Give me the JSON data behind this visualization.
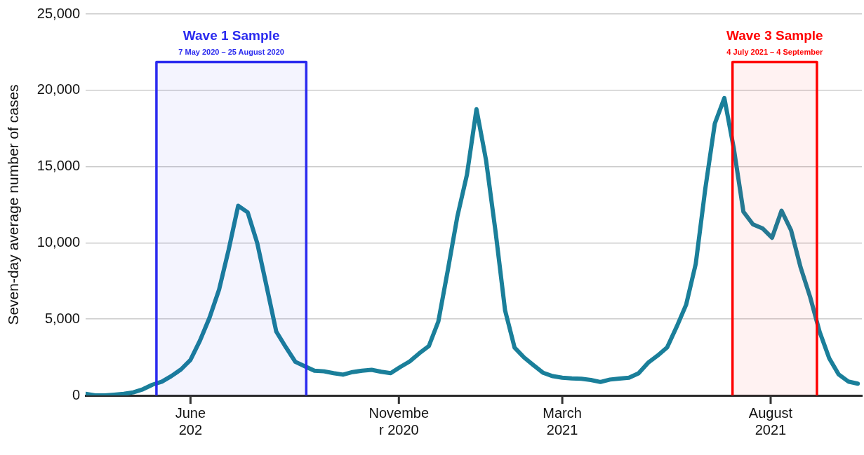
{
  "chart_data": {
    "type": "line",
    "ylabel": "Seven-day average number of cases",
    "x": [
      "2020-03-16",
      "2020-03-23",
      "2020-03-30",
      "2020-04-06",
      "2020-04-13",
      "2020-04-20",
      "2020-04-27",
      "2020-05-04",
      "2020-05-11",
      "2020-05-18",
      "2020-05-25",
      "2020-06-01",
      "2020-06-08",
      "2020-06-15",
      "2020-06-22",
      "2020-06-29",
      "2020-07-06",
      "2020-07-13",
      "2020-07-20",
      "2020-07-27",
      "2020-08-03",
      "2020-08-10",
      "2020-08-17",
      "2020-08-24",
      "2020-08-31",
      "2020-09-07",
      "2020-09-14",
      "2020-09-21",
      "2020-09-28",
      "2020-10-05",
      "2020-10-12",
      "2020-10-19",
      "2020-10-26",
      "2020-11-02",
      "2020-11-09",
      "2020-11-16",
      "2020-11-23",
      "2020-11-30",
      "2020-12-07",
      "2020-12-14",
      "2020-12-21",
      "2020-12-28",
      "2021-01-04",
      "2021-01-11",
      "2021-01-18",
      "2021-01-25",
      "2021-02-01",
      "2021-02-08",
      "2021-02-15",
      "2021-02-22",
      "2021-03-01",
      "2021-03-08",
      "2021-03-15",
      "2021-03-22",
      "2021-03-29",
      "2021-04-05",
      "2021-04-12",
      "2021-04-19",
      "2021-04-26",
      "2021-05-03",
      "2021-05-10",
      "2021-05-17",
      "2021-05-24",
      "2021-05-31",
      "2021-06-07",
      "2021-06-14",
      "2021-06-21",
      "2021-06-28",
      "2021-07-05",
      "2021-07-12",
      "2021-07-19",
      "2021-07-26",
      "2021-08-02",
      "2021-08-09",
      "2021-08-16",
      "2021-08-23",
      "2021-08-30",
      "2021-09-06",
      "2021-09-13",
      "2021-09-20",
      "2021-09-27",
      "2021-10-04"
    ],
    "series": [
      {
        "color": "#1a7f9a",
        "values": [
          100,
          0,
          0,
          50,
          100,
          200,
          400,
          700,
          900,
          1270,
          1700,
          2330,
          3600,
          5100,
          6940,
          9540,
          12430,
          12000,
          9990,
          7100,
          4180,
          3160,
          2200,
          1910,
          1620,
          1580,
          1460,
          1360,
          1530,
          1620,
          1680,
          1550,
          1460,
          1860,
          2230,
          2760,
          3230,
          4850,
          8230,
          11750,
          14470,
          18760,
          15430,
          10740,
          5570,
          3130,
          2480,
          1970,
          1480,
          1260,
          1160,
          1110,
          1090,
          1010,
          880,
          1040,
          1100,
          1160,
          1450,
          2140,
          2610,
          3150,
          4500,
          5960,
          8620,
          13540,
          17820,
          19490,
          16160,
          12040,
          11210,
          10950,
          10330,
          12110,
          10820,
          8390,
          6450,
          4160,
          2440,
          1370,
          910,
          770
        ]
      }
    ],
    "xlim": [
      "2020-03-16",
      "2021-10-07"
    ],
    "xticks": [
      {
        "value": "2020-06-01",
        "label": "June\n202"
      },
      {
        "value": "2020-11-01",
        "label": "Novembe\nr 2020"
      },
      {
        "value": "2021-03-01",
        "label": "March\n2021"
      },
      {
        "value": "2021-08-01",
        "label": "August\n2021"
      }
    ],
    "ylim": [
      0,
      25000
    ],
    "yticks": [
      0,
      {
        "value": 5000,
        "label": "5,000"
      },
      {
        "value": 10000,
        "label": "10,000"
      },
      {
        "value": 15000,
        "label": "15,000"
      },
      {
        "value": 20000,
        "label": "20,000"
      },
      {
        "value": 25000,
        "label": "25,000"
      }
    ],
    "grid": "y",
    "bands": [
      {
        "axis": "x",
        "from": "2020-05-07",
        "to": "2020-08-25",
        "label": "Wave 1 Sample",
        "color": "#2b2bef"
      },
      {
        "axis": "x",
        "from": "2021-07-04",
        "to": "2021-09-04",
        "label": "Wave 3 Sample",
        "color": "#ff0000"
      }
    ],
    "annotations": [
      "7 May 2020 – 25 August 2020",
      "4 July 2021 – 4 September"
    ]
  }
}
